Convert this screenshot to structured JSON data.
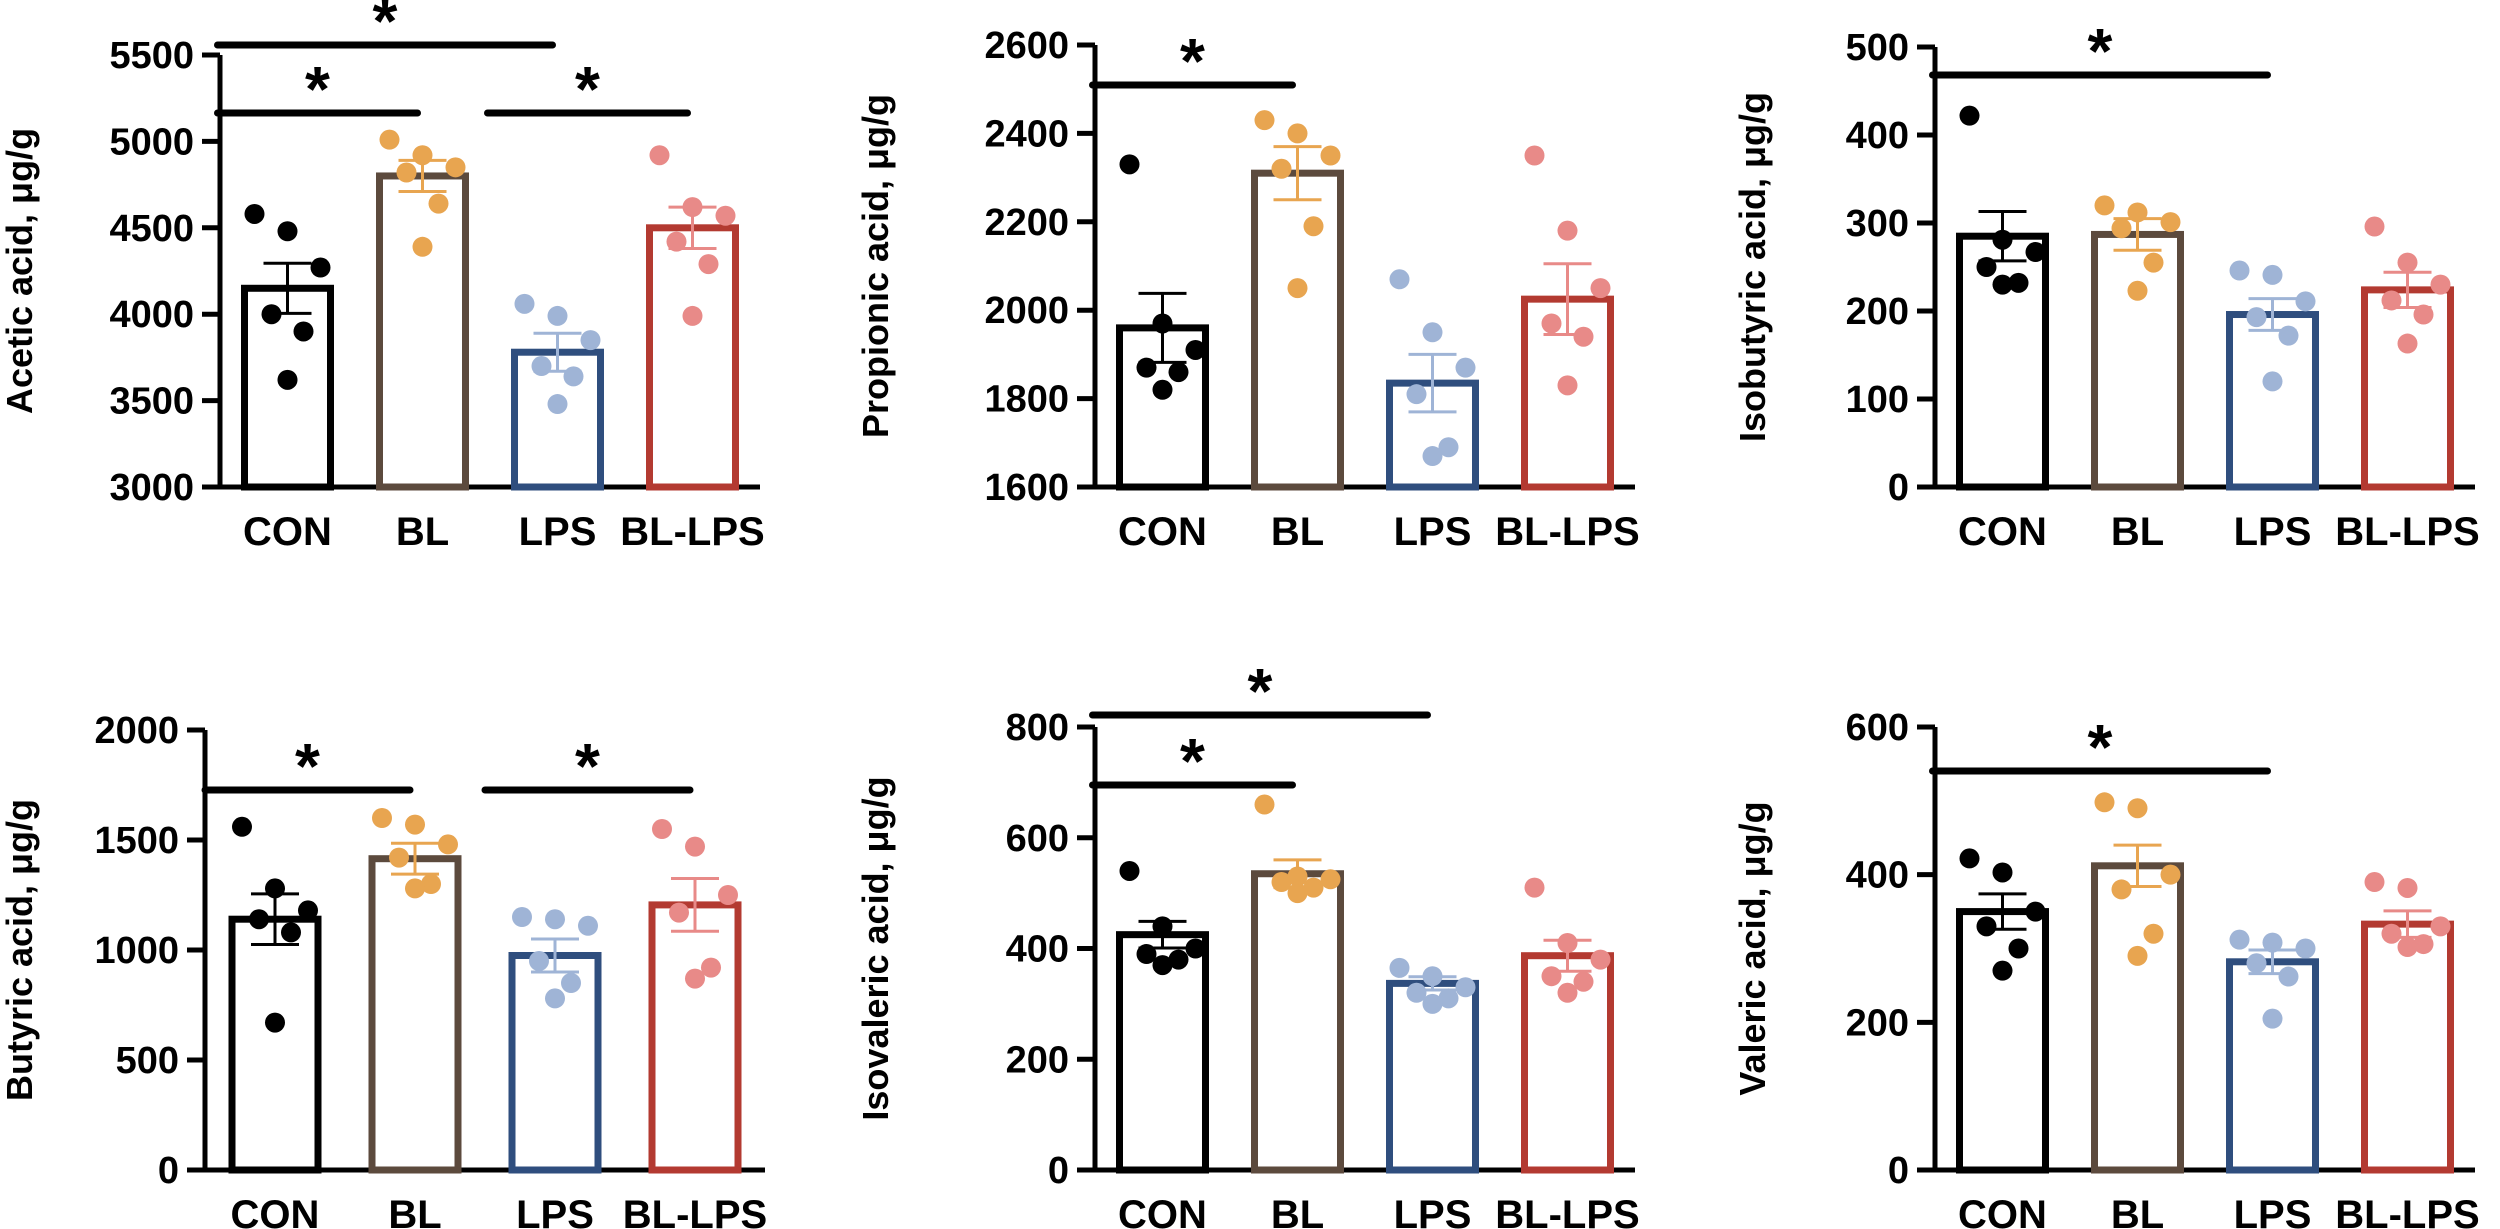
{
  "groups": [
    {
      "name": "CON",
      "color": "#000000",
      "point_color": "#000000"
    },
    {
      "name": "BL",
      "color": "#5c4a3d",
      "point_color": "#e8a550"
    },
    {
      "name": "LPS",
      "color": "#2f4e7e",
      "point_color": "#9fb4d6"
    },
    {
      "name": "BL-LPS",
      "color": "#b33a31",
      "point_color": "#e88a88"
    }
  ],
  "chart_data": [
    {
      "type": "bar",
      "ylabel": "Acetic acid, μg/g",
      "categories": [
        "CON",
        "BL",
        "LPS",
        "BL-LPS"
      ],
      "ylim": [
        3000,
        5500
      ],
      "yticks": [
        3000,
        3500,
        4000,
        4500,
        5000,
        5500
      ],
      "means": [
        4150,
        4800,
        3780,
        4500
      ],
      "sem": [
        145,
        90,
        110,
        120
      ],
      "points": [
        [
          4580,
          4480,
          4270,
          4000,
          3900,
          3620
        ],
        [
          5010,
          4920,
          4850,
          4820,
          4640,
          4390
        ],
        [
          4060,
          3990,
          3850,
          3700,
          3640,
          3480
        ],
        [
          4920,
          4620,
          4570,
          4420,
          4290,
          3990
        ]
      ],
      "significance": [
        {
          "from": 0,
          "to": 2,
          "row": 0,
          "label": "*"
        },
        {
          "from": 0,
          "to": 1,
          "row": 1,
          "label": "*"
        },
        {
          "from": 2,
          "to": 3,
          "row": 1,
          "label": "*"
        }
      ]
    },
    {
      "type": "bar",
      "ylabel": "Propionic acid, μg/g",
      "categories": [
        "CON",
        "BL",
        "LPS",
        "BL-LPS"
      ],
      "ylim": [
        1600,
        2600
      ],
      "yticks": [
        1600,
        1800,
        2000,
        2200,
        2400,
        2600
      ],
      "means": [
        1960,
        2310,
        1835,
        2025
      ],
      "sem": [
        78,
        60,
        65,
        80
      ],
      "points": [
        [
          2330,
          1970,
          1910,
          1870,
          1860,
          1820
        ],
        [
          2430,
          2400,
          2350,
          2320,
          2190,
          2050
        ],
        [
          2070,
          1950,
          1870,
          1810,
          1690,
          1670
        ],
        [
          2350,
          2180,
          2050,
          1970,
          1940,
          1830
        ]
      ],
      "significance": [
        {
          "from": 0,
          "to": 1,
          "row": 1,
          "label": "*"
        }
      ]
    },
    {
      "type": "bar",
      "ylabel": "Isobutyric acid, μg/g",
      "categories": [
        "CON",
        "BL",
        "LPS",
        "BL-LPS"
      ],
      "ylim": [
        0,
        500
      ],
      "yticks": [
        0,
        100,
        200,
        300,
        400,
        500
      ],
      "means": [
        285,
        287,
        196,
        224
      ],
      "sem": [
        28,
        18,
        18,
        20
      ],
      "points": [
        [
          422,
          281,
          267,
          250,
          232,
          230
        ],
        [
          320,
          312,
          301,
          294,
          255,
          223
        ],
        [
          246,
          241,
          211,
          193,
          172,
          120
        ],
        [
          296,
          255,
          230,
          212,
          196,
          163
        ]
      ],
      "significance": [
        {
          "from": 0,
          "to": 2,
          "row": 1,
          "label": "*"
        }
      ]
    },
    {
      "type": "bar",
      "ylabel": "Butyric acid, μg/g",
      "categories": [
        "CON",
        "BL",
        "LPS",
        "BL-LPS"
      ],
      "ylim": [
        0,
        2000
      ],
      "yticks": [
        0,
        500,
        1000,
        1500,
        2000
      ],
      "means": [
        1140,
        1415,
        975,
        1205
      ],
      "sem": [
        115,
        70,
        75,
        120
      ],
      "points": [
        [
          1560,
          1280,
          1180,
          1140,
          1080,
          670
        ],
        [
          1600,
          1570,
          1480,
          1420,
          1300,
          1280
        ],
        [
          1150,
          1140,
          1110,
          950,
          850,
          780
        ],
        [
          1550,
          1470,
          1250,
          1170,
          920,
          870
        ]
      ],
      "significance": [
        {
          "from": 0,
          "to": 1,
          "row": 1,
          "label": "*"
        },
        {
          "from": 2,
          "to": 3,
          "row": 1,
          "label": "*"
        }
      ]
    },
    {
      "type": "bar",
      "ylabel": "Isovaleric acid, μg/g",
      "categories": [
        "CON",
        "BL",
        "LPS",
        "BL-LPS"
      ],
      "ylim": [
        0,
        800
      ],
      "yticks": [
        0,
        200,
        400,
        600,
        800
      ],
      "means": [
        425,
        535,
        337,
        387
      ],
      "sem": [
        24,
        25,
        12,
        28
      ],
      "points": [
        [
          540,
          440,
          400,
          390,
          380,
          370
        ],
        [
          660,
          530,
          525,
          520,
          510,
          500
        ],
        [
          365,
          350,
          330,
          320,
          310,
          300
        ],
        [
          510,
          410,
          380,
          350,
          340,
          320
        ]
      ],
      "significance": [
        {
          "from": 0,
          "to": 2,
          "row": 0,
          "label": "*"
        },
        {
          "from": 0,
          "to": 1,
          "row": 1,
          "label": "*"
        }
      ]
    },
    {
      "type": "bar",
      "ylabel": "Valeric acid, μg/g",
      "categories": [
        "CON",
        "BL",
        "LPS",
        "BL-LPS"
      ],
      "ylim": [
        0,
        600
      ],
      "yticks": [
        0,
        200,
        400,
        600
      ],
      "means": [
        350,
        412,
        282,
        333
      ],
      "sem": [
        24,
        28,
        16,
        18
      ],
      "points": [
        [
          422,
          403,
          350,
          330,
          300,
          270
        ],
        [
          498,
          490,
          400,
          380,
          320,
          290
        ],
        [
          312,
          308,
          300,
          280,
          262,
          205
        ],
        [
          390,
          382,
          330,
          320,
          306,
          302
        ]
      ],
      "significance": [
        {
          "from": 0,
          "to": 2,
          "row": 1,
          "label": "*"
        }
      ]
    }
  ]
}
